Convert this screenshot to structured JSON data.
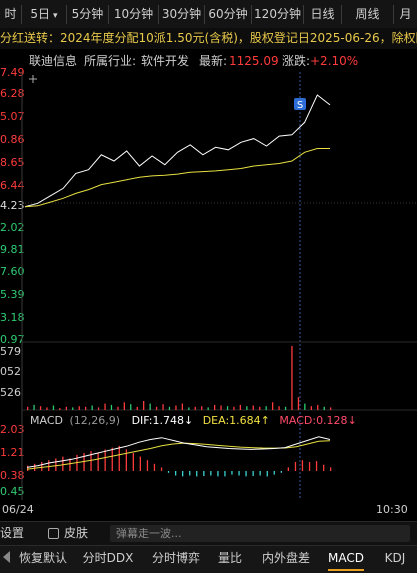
{
  "period_bar": {
    "items": [
      {
        "label": "时",
        "active": true
      },
      {
        "label": "5日",
        "caret": "▾"
      },
      {
        "label": "5分钟"
      },
      {
        "label": "10分钟"
      },
      {
        "label": "30分钟"
      },
      {
        "label": "60分钟"
      },
      {
        "label": "120分钟"
      },
      {
        "label": "日线"
      },
      {
        "label": "周线"
      },
      {
        "label": "月"
      }
    ]
  },
  "notice": "分红送转：2024年度分配10派1.50元(含税)，股权登记日2025-06-26，除权除息日2025-06-27",
  "info": {
    "name": "联迪信息",
    "industry_label": "所属行业:",
    "industry": "软件开发",
    "latest_label": "最新:",
    "latest": "1125.09",
    "change_label": "涨跌:",
    "change": "+2.10%"
  },
  "price_axis": [
    {
      "label": "7.49",
      "color": "red"
    },
    {
      "label": "6.28",
      "color": "red"
    },
    {
      "label": "5.07",
      "color": "red"
    },
    {
      "label": "0.86",
      "color": "red"
    },
    {
      "label": "8.65",
      "color": "red"
    },
    {
      "label": "6.44",
      "color": "red"
    },
    {
      "label": "4.23",
      "color": "white"
    },
    {
      "label": "2.02",
      "color": "green"
    },
    {
      "label": "9.81",
      "color": "green"
    },
    {
      "label": "7.60",
      "color": "green"
    },
    {
      "label": "5.39",
      "color": "green"
    },
    {
      "label": "3.18",
      "color": "green"
    },
    {
      "label": "0.97",
      "color": "green"
    }
  ],
  "volume_axis": [
    "579",
    "052",
    "526"
  ],
  "macd": {
    "title": "MACD",
    "params": "(12,26,9)",
    "dif_label": "DIF:",
    "dif": "1.748",
    "dif_arrow": "↓",
    "dea_label": "DEA:",
    "dea": "1.684",
    "dea_arrow": "↑",
    "macd_label": "MACD:",
    "macd": "0.128",
    "macd_arrow": "↓",
    "axis": [
      "2.03",
      "1.21",
      "0.38",
      "0.45"
    ]
  },
  "xaxis": {
    "start": "06/24",
    "end": "10:30"
  },
  "signal_marker": "S",
  "toolbar": {
    "settings": "设置",
    "skin": "皮肤",
    "danmu_placeholder": "弹幕走一波..."
  },
  "tabs": [
    {
      "label": "恢复默认"
    },
    {
      "label": "分时DDX"
    },
    {
      "label": "分时博弈"
    },
    {
      "label": "量比"
    },
    {
      "label": "内外盘差"
    },
    {
      "label": "MACD",
      "active": true
    },
    {
      "label": "KDJ"
    }
  ],
  "chart_data": {
    "type": "line",
    "series": [
      {
        "values": [
          4.23,
          4.5,
          5.1,
          5.7,
          6.9,
          7.2,
          8.4,
          7.9,
          8.7,
          7.5,
          8.3,
          7.6,
          8.6,
          9.2,
          8.4,
          9.0,
          8.8,
          9.4,
          9.7,
          9.1,
          9.9,
          10.0,
          11.0,
          13.2,
          12.4
        ]
      },
      {
        "values": [
          4.23,
          4.3,
          4.6,
          4.9,
          5.3,
          5.6,
          6.0,
          6.2,
          6.4,
          6.6,
          6.7,
          6.75,
          6.85,
          7.0,
          7.05,
          7.1,
          7.2,
          7.3,
          7.5,
          7.6,
          7.7,
          7.9,
          8.6,
          8.9,
          8.9
        ]
      }
    ],
    "volume": [
      0.05,
      0.08,
      0.06,
      0.04,
      0.07,
      0.03,
      0.05,
      0.04,
      0.06,
      0.05,
      0.07,
      0.04,
      0.1,
      0.08,
      0.05,
      0.12,
      0.09,
      0.05,
      0.14,
      0.1,
      0.05,
      0.09,
      0.05,
      0.07,
      0.1,
      0.04,
      0.05,
      0.06,
      0.04,
      0.08,
      0.07,
      0.06,
      0.05,
      0.08,
      0.06,
      0.07,
      0.05,
      0.06,
      0.12,
      0.06,
      0.05,
      1.0,
      0.2,
      0.1,
      0.06,
      0.08,
      0.05,
      0.04
    ],
    "macd_hist": [
      0.3,
      0.4,
      0.5,
      0.6,
      0.7,
      0.8,
      0.7,
      0.9,
      1.0,
      1.1,
      1.0,
      1.2,
      1.3,
      1.4,
      1.2,
      1.0,
      0.8,
      0.6,
      0.4,
      0.2,
      -0.1,
      -0.25,
      -0.3,
      -0.25,
      -0.3,
      -0.28,
      -0.25,
      -0.3,
      -0.3,
      -0.2,
      -0.25,
      -0.3,
      -0.28,
      -0.25,
      -0.3,
      -0.2,
      -0.1,
      0.2,
      0.5,
      0.6,
      0.5,
      0.55,
      0.35,
      0.2
    ],
    "dif": [
      0.2,
      0.3,
      0.45,
      0.55,
      0.65,
      0.8,
      0.95,
      1.1,
      1.25,
      1.4,
      1.6,
      1.75,
      1.85,
      1.7,
      1.55,
      1.45,
      1.35,
      1.3,
      1.25,
      1.22,
      1.2,
      1.22,
      1.25,
      1.3,
      1.5,
      1.7,
      1.9,
      1.748
    ],
    "dea": [
      0.1,
      0.18,
      0.25,
      0.33,
      0.42,
      0.52,
      0.62,
      0.75,
      0.88,
      1.0,
      1.12,
      1.25,
      1.4,
      1.5,
      1.55,
      1.52,
      1.48,
      1.42,
      1.38,
      1.33,
      1.3,
      1.28,
      1.27,
      1.28,
      1.35,
      1.5,
      1.65,
      1.684
    ]
  }
}
